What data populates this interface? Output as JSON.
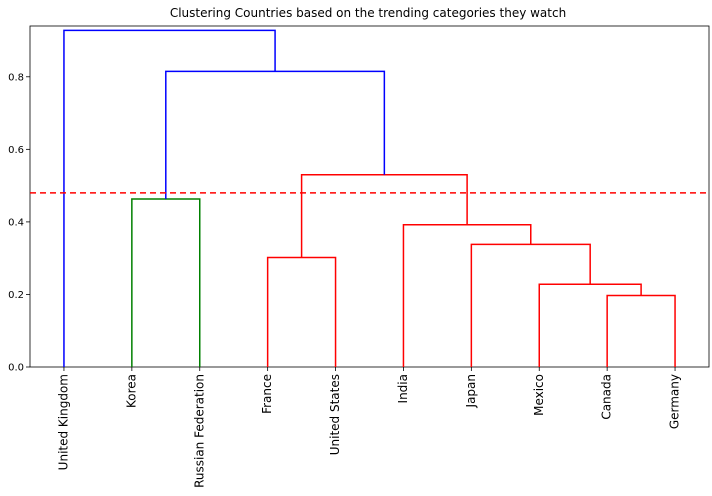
{
  "chart_data": {
    "type": "dendrogram",
    "title": "Clustering Countries based on the trending categories they watch",
    "xlabel": "",
    "ylabel": "",
    "ylim": [
      0,
      0.94
    ],
    "y_ticks": [
      0.0,
      0.2,
      0.4,
      0.6,
      0.8
    ],
    "y_tick_labels": [
      "0.0",
      "0.2",
      "0.4",
      "0.6",
      "0.8"
    ],
    "leaves": [
      "United Kingdom",
      "Korea",
      "Russian Federation",
      "France",
      "United States",
      "India",
      "Japan",
      "Mexico",
      "Canada",
      "Germany"
    ],
    "threshold": {
      "value": 0.48,
      "color": "#ff0000",
      "style": "dashed"
    },
    "links": [
      {
        "left": "Canada",
        "right": "Germany",
        "height": 0.197,
        "color": "#ff0000"
      },
      {
        "left": "Mexico",
        "right": "(Canada, Germany)",
        "height": 0.228,
        "color": "#ff0000"
      },
      {
        "left": "France",
        "right": "United States",
        "height": 0.302,
        "color": "#ff0000"
      },
      {
        "left": "Japan",
        "right": "(Mexico, Canada, Germany)",
        "height": 0.338,
        "color": "#ff0000"
      },
      {
        "left": "India",
        "right": "(Japan, Mexico, Canada, Germany)",
        "height": 0.392,
        "color": "#ff0000"
      },
      {
        "left": "Korea",
        "right": "Russian Federation",
        "height": 0.463,
        "color": "#008000"
      },
      {
        "left": "(France, United States)",
        "right": "(India, Japan, Mexico, Canada, Germany)",
        "height": 0.53,
        "color": "#ff0000"
      },
      {
        "left": "(Korea, Russian Federation)",
        "right": "(France, ..., Germany)",
        "height": 0.815,
        "color": "#0000ff"
      },
      {
        "left": "United Kingdom",
        "right": "(Korea, ..., Germany)",
        "height": 0.928,
        "color": "#0000ff"
      }
    ]
  }
}
